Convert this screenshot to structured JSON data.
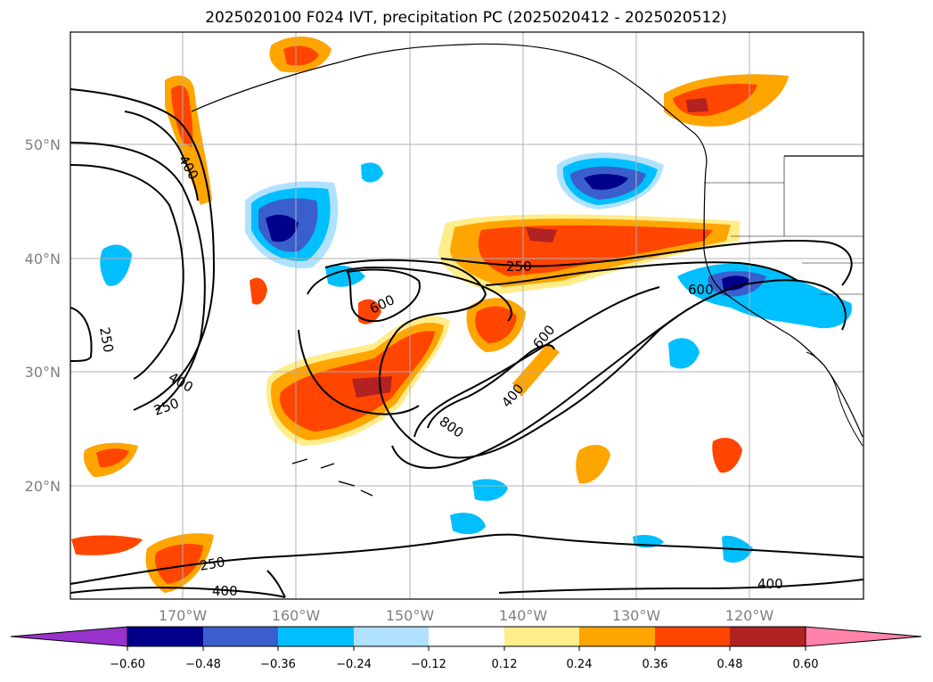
{
  "title": "2025020100 F024 IVT, precipitation PC (2025020412 - 2025020512)",
  "map": {
    "lat_labels": [
      "50°N",
      "40°N",
      "30°N",
      "20°N"
    ],
    "lon_labels": [
      "170°W",
      "160°W",
      "150°W",
      "140°W",
      "130°W",
      "120°W"
    ],
    "grid": true,
    "extent": {
      "lon": [
        -179,
        -109
      ],
      "lat": [
        10,
        60
      ]
    },
    "ivt_contour_labels": [
      "400",
      "250",
      "400",
      "250",
      "250",
      "600",
      "600",
      "600",
      "400",
      "800",
      "250",
      "400",
      "400"
    ]
  },
  "colorbar": {
    "ticks": [
      "−0.60",
      "−0.48",
      "−0.36",
      "−0.24",
      "−0.12",
      "0.12",
      "0.24",
      "0.36",
      "0.48",
      "0.60"
    ],
    "colors": [
      "#9932cc",
      "#00008b",
      "#3a5fcd",
      "#00bfff",
      "#b0e2ff",
      "#ffffff",
      "#ffec8b",
      "#ffa500",
      "#ff4500",
      "#b22222",
      "#ff82ab"
    ],
    "extend": "both"
  },
  "legend_colors": {
    "strong_positive": "#b22222",
    "positive": "#ff4500",
    "moderate_positive": "#ffa500",
    "weak_positive": "#ffec8b",
    "weak_negative": "#b0e2ff",
    "moderate_negative": "#00bfff",
    "negative": "#3a5fcd",
    "strong_negative": "#00008b"
  }
}
